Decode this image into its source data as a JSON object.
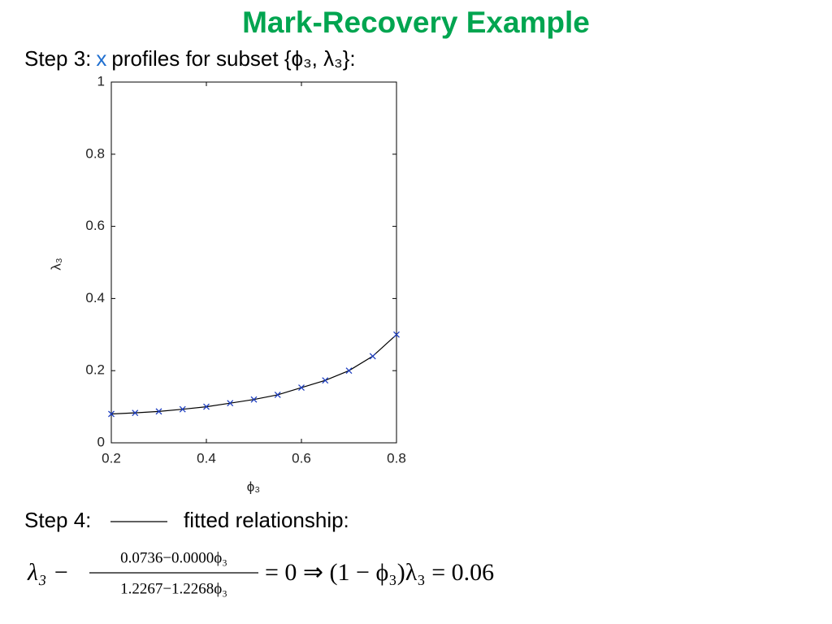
{
  "title": "Mark-Recovery Example",
  "step3": {
    "prefix": "Step 3:",
    "marker": "x",
    "text": "profiles for subset {ϕ₃, λ₃}:"
  },
  "step4": {
    "prefix": "Step 4:",
    "text": "fitted relationship:"
  },
  "equation": {
    "lhs": "λ₃ −",
    "numerator": "0.0736−0.0000ϕ₃",
    "denominator": "1.2267−1.2268ϕ₃",
    "rhs": "= 0 ⇒ (1 − ϕ₃)λ₃ = 0.06"
  },
  "chart_data": {
    "type": "line",
    "x_label": "ϕ₃",
    "y_label": "λ₃",
    "x": [
      0.2,
      0.25,
      0.3,
      0.35,
      0.4,
      0.45,
      0.5,
      0.55,
      0.6,
      0.65,
      0.7,
      0.75,
      0.8
    ],
    "values": [
      0.08,
      0.083,
      0.087,
      0.093,
      0.1,
      0.11,
      0.12,
      0.133,
      0.153,
      0.173,
      0.2,
      0.24,
      0.3
    ],
    "line_color": "#000000",
    "marker_color": "#1f3fbf",
    "xlim": [
      0.2,
      0.8
    ],
    "xticks": [
      0.2,
      0.4,
      0.6,
      0.8
    ],
    "ylim": [
      0,
      1
    ],
    "yticks": [
      0,
      0.2,
      0.4,
      0.6,
      0.8,
      1
    ]
  }
}
